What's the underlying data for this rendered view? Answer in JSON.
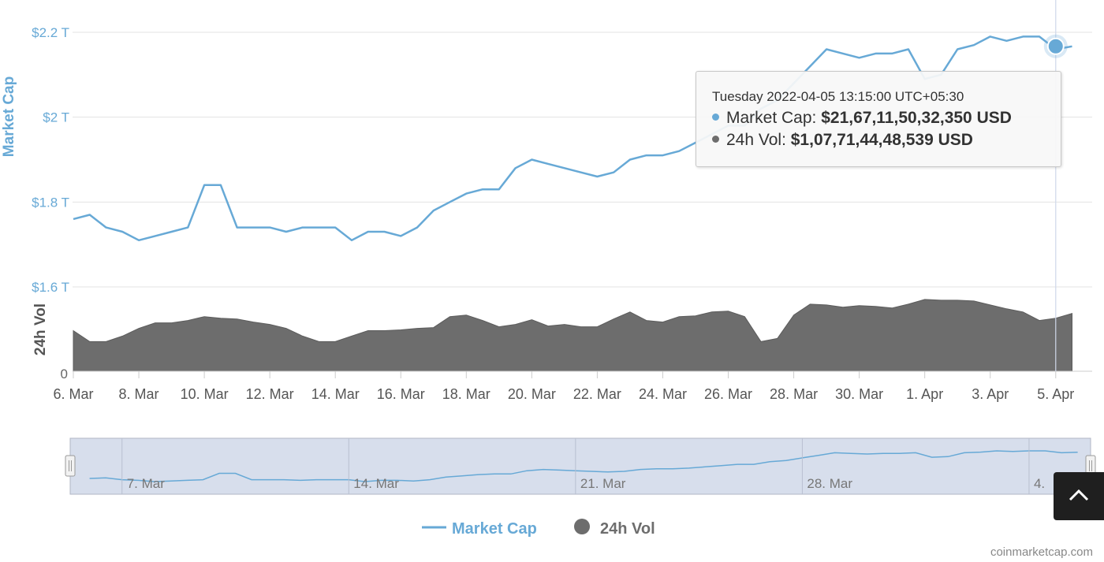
{
  "chart_data": {
    "type": "line",
    "xlabel": "",
    "x_ticks": [
      "6. Mar",
      "8. Mar",
      "10. Mar",
      "12. Mar",
      "14. Mar",
      "16. Mar",
      "18. Mar",
      "20. Mar",
      "22. Mar",
      "24. Mar",
      "26. Mar",
      "28. Mar",
      "30. Mar",
      "1. Apr",
      "3. Apr",
      "5. Apr"
    ],
    "x_range_days": [
      6,
      36.8
    ],
    "y_axis_market_cap": {
      "label": "Market Cap",
      "ticks": [
        "$1.6 T",
        "$1.8 T",
        "$2 T",
        "$2.2 T"
      ],
      "range_trillion_usd": [
        1.6,
        2.2
      ],
      "color": "#67a9d6"
    },
    "y_axis_volume": {
      "label": "24h Vol",
      "ticks": [
        "0"
      ],
      "color": "#6d6d6d"
    },
    "series": [
      {
        "name": "Market Cap",
        "type": "line",
        "color": "#67a9d6",
        "unit": "trillion USD",
        "x": [
          "6. Mar",
          "6.5 Mar",
          "7. Mar",
          "7.5 Mar",
          "8. Mar",
          "8.5 Mar",
          "9. Mar",
          "9.5 Mar",
          "10. Mar",
          "10.5 Mar",
          "11. Mar",
          "11.5 Mar",
          "12. Mar",
          "12.5 Mar",
          "13. Mar",
          "13.5 Mar",
          "14. Mar",
          "14.5 Mar",
          "15. Mar",
          "15.5 Mar",
          "16. Mar",
          "16.5 Mar",
          "17. Mar",
          "17.5 Mar",
          "18. Mar",
          "18.5 Mar",
          "19. Mar",
          "19.5 Mar",
          "20. Mar",
          "20.5 Mar",
          "21. Mar",
          "21.5 Mar",
          "22. Mar",
          "22.5 Mar",
          "23. Mar",
          "23.5 Mar",
          "24. Mar",
          "24.5 Mar",
          "25. Mar",
          "25.5 Mar",
          "26. Mar",
          "26.5 Mar",
          "27. Mar",
          "27.5 Mar",
          "28. Mar",
          "28.5 Mar",
          "29. Mar",
          "29.5 Mar",
          "30. Mar",
          "30.5 Mar",
          "31. Mar",
          "31.5 Mar",
          "1. Apr",
          "1.5 Apr",
          "2. Apr",
          "2.5 Apr",
          "3. Apr",
          "3.5 Apr",
          "4. Apr",
          "4.5 Apr",
          "5. Apr",
          "5.5 Apr"
        ],
        "values": [
          1.76,
          1.77,
          1.74,
          1.73,
          1.71,
          1.72,
          1.73,
          1.74,
          1.84,
          1.84,
          1.74,
          1.74,
          1.74,
          1.73,
          1.74,
          1.74,
          1.74,
          1.71,
          1.73,
          1.73,
          1.72,
          1.74,
          1.78,
          1.8,
          1.82,
          1.83,
          1.83,
          1.88,
          1.9,
          1.89,
          1.88,
          1.87,
          1.86,
          1.87,
          1.9,
          1.91,
          1.91,
          1.92,
          1.94,
          1.96,
          1.98,
          1.98,
          2.02,
          2.04,
          2.08,
          2.12,
          2.16,
          2.15,
          2.14,
          2.15,
          2.15,
          2.16,
          2.09,
          2.1,
          2.16,
          2.17,
          2.19,
          2.18,
          2.19,
          2.19,
          2.16,
          2.167
        ]
      },
      {
        "name": "24h Vol",
        "type": "area",
        "color": "#6d6d6d",
        "unit": "relative",
        "x": [
          "6. Mar",
          "6.5 Mar",
          "7. Mar",
          "7.5 Mar",
          "8. Mar",
          "8.5 Mar",
          "9. Mar",
          "9.5 Mar",
          "10. Mar",
          "10.5 Mar",
          "11. Mar",
          "11.5 Mar",
          "12. Mar",
          "12.5 Mar",
          "13. Mar",
          "13.5 Mar",
          "14. Mar",
          "14.5 Mar",
          "15. Mar",
          "15.5 Mar",
          "16. Mar",
          "16.5 Mar",
          "17. Mar",
          "17.5 Mar",
          "18. Mar",
          "18.5 Mar",
          "19. Mar",
          "19.5 Mar",
          "20. Mar",
          "20.5 Mar",
          "21. Mar",
          "21.5 Mar",
          "22. Mar",
          "22.5 Mar",
          "23. Mar",
          "23.5 Mar",
          "24. Mar",
          "24.5 Mar",
          "25. Mar",
          "25.5 Mar",
          "26. Mar",
          "26.5 Mar",
          "27. Mar",
          "27.5 Mar",
          "28. Mar",
          "28.5 Mar",
          "29. Mar",
          "29.5 Mar",
          "30. Mar",
          "30.5 Mar",
          "31. Mar",
          "31.5 Mar",
          "1. Apr",
          "1.5 Apr",
          "2. Apr",
          "2.5 Apr",
          "3. Apr",
          "3.5 Apr",
          "4. Apr",
          "4.5 Apr",
          "5. Apr",
          "5.5 Apr"
        ],
        "values": [
          0.52,
          0.38,
          0.38,
          0.45,
          0.55,
          0.62,
          0.62,
          0.65,
          0.7,
          0.68,
          0.67,
          0.63,
          0.6,
          0.55,
          0.45,
          0.38,
          0.38,
          0.45,
          0.52,
          0.52,
          0.53,
          0.55,
          0.56,
          0.7,
          0.72,
          0.65,
          0.57,
          0.6,
          0.66,
          0.58,
          0.6,
          0.57,
          0.57,
          0.67,
          0.76,
          0.65,
          0.63,
          0.7,
          0.71,
          0.76,
          0.77,
          0.7,
          0.38,
          0.42,
          0.72,
          0.86,
          0.85,
          0.82,
          0.84,
          0.83,
          0.81,
          0.86,
          0.92,
          0.91,
          0.91,
          0.9,
          0.85,
          0.8,
          0.76,
          0.65,
          0.68,
          0.74
        ]
      }
    ],
    "grid": true,
    "legend_placement": "bottom-center",
    "highlighted_point": {
      "x": "5. Apr",
      "series": "Market Cap",
      "value": 2.167
    }
  },
  "tooltip": {
    "header": "Tuesday 2022-04-05 13:15:00 UTC+05:30",
    "rows": [
      {
        "label": "Market Cap:",
        "value": "$21,67,11,50,32,350 USD",
        "color": "#67a9d6"
      },
      {
        "label": "24h Vol:",
        "value": "$1,07,71,44,48,539 USD",
        "color": "#6d6d6d"
      }
    ]
  },
  "navigator": {
    "labels": [
      "7. Mar",
      "14. Mar",
      "21. Mar",
      "28. Mar",
      "4."
    ],
    "label_days": [
      7,
      14,
      21,
      28,
      35
    ]
  },
  "legend": {
    "items": [
      {
        "label": "Market Cap",
        "color": "#67a9d6"
      },
      {
        "label": "24h Vol",
        "color": "#6d6d6d"
      }
    ]
  },
  "watermark": "coinmarketcap.com",
  "colors": {
    "market_cap": "#67a9d6",
    "volume": "#6d6d6d",
    "navigator_bg": "#d7deec",
    "text_secondary": "#666666"
  }
}
